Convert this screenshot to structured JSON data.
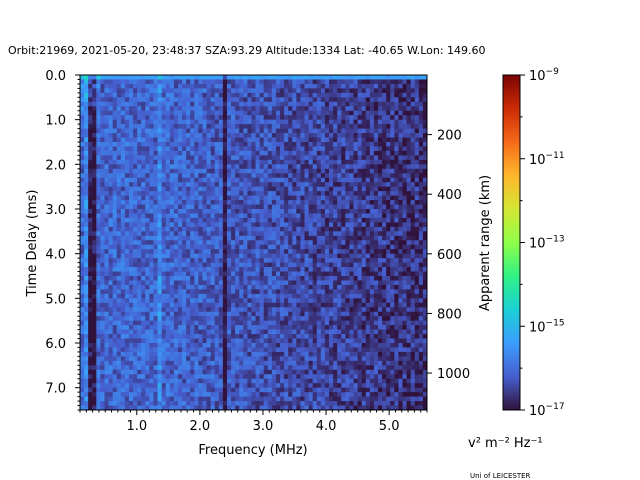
{
  "chart_data": {
    "type": "heatmap",
    "title": "Orbit:21969, 2021-05-20, 23:48:37 SZA:93.29 Altitude:1334 Lat: -40.65 W.Lon: 149.60",
    "xlabel": "Frequency (MHz)",
    "ylabel": "Time Delay (ms)",
    "y2label": "Apparent range (km)",
    "xlim": [
      0.1,
      5.6
    ],
    "ylim": [
      7.5,
      0.0
    ],
    "y2lim": [
      0,
      1124
    ],
    "x_ticks": [
      1.0,
      2.0,
      3.0,
      4.0,
      5.0
    ],
    "x_tick_labels": [
      "1.0",
      "2.0",
      "3.0",
      "4.0",
      "5.0"
    ],
    "y_ticks": [
      0.0,
      1.0,
      2.0,
      3.0,
      4.0,
      5.0,
      6.0,
      7.0
    ],
    "y_tick_labels": [
      "0.0",
      "1.0",
      "2.0",
      "3.0",
      "4.0",
      "5.0",
      "6.0",
      "7.0"
    ],
    "y2_ticks": [
      200,
      400,
      600,
      800,
      1000
    ],
    "y2_tick_labels": [
      "200",
      "400",
      "600",
      "800",
      "1000"
    ],
    "colorbar": {
      "scale": "log",
      "min_exp": -17,
      "max_exp": -9,
      "tick_exps": [
        -17,
        -15,
        -13,
        -11,
        -9
      ],
      "unit_label": "v² m⁻² Hz⁻¹",
      "colormap": "turbo"
    },
    "features": {
      "top_row_level_exp": -15.4,
      "background_level_exp_low_freq": -16.1,
      "background_level_exp_high_freq": -16.7,
      "bright_column_freqs_mhz": [
        0.2,
        1.34
      ],
      "dark_column_freqs_mhz": [
        2.38,
        0.3
      ]
    },
    "credit": "Uni of LEICESTER"
  }
}
